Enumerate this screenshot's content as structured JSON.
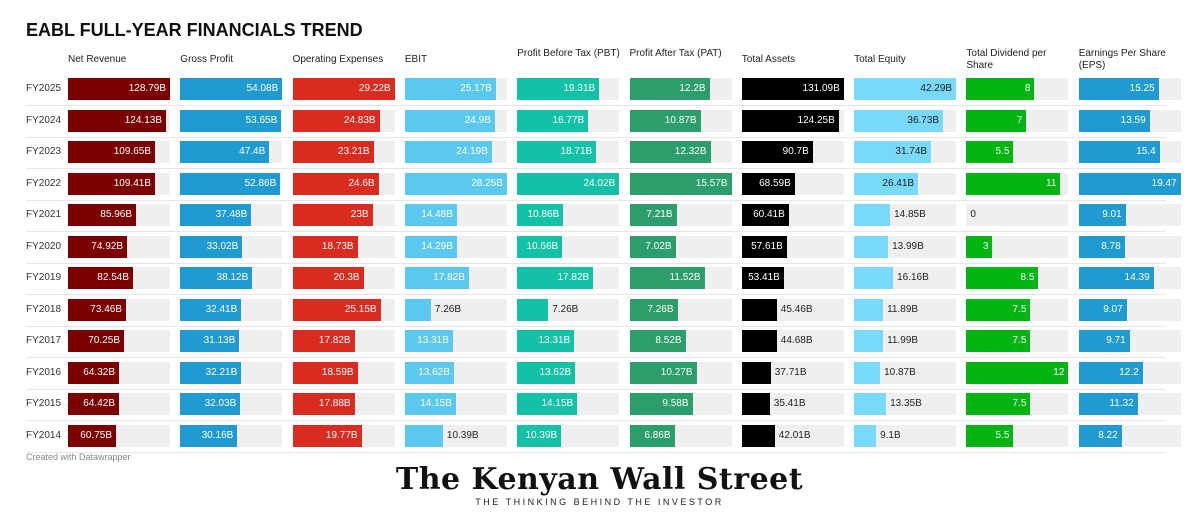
{
  "chart_data": {
    "type": "table",
    "title": "EABL FULL-YEAR FINANCIALS TREND",
    "credit": "Created with Datawrapper",
    "years": [
      "FY2025",
      "FY2024",
      "FY2023",
      "FY2022",
      "FY2021",
      "FY2020",
      "FY2019",
      "FY2018",
      "FY2017",
      "FY2016",
      "FY2015",
      "FY2014"
    ],
    "columns": [
      {
        "name": "Net Revenue",
        "color": "#7b0000",
        "unit": "B",
        "max": 128.79,
        "values": [
          128.79,
          124.13,
          109.65,
          109.41,
          85.96,
          74.92,
          82.54,
          73.46,
          70.25,
          64.32,
          64.42,
          60.75
        ]
      },
      {
        "name": "Gross Profit",
        "color": "#1f9bd1",
        "unit": "B",
        "max": 54.08,
        "values": [
          54.08,
          53.65,
          47.4,
          52.86,
          37.48,
          33.02,
          38.12,
          32.41,
          31.13,
          32.21,
          32.03,
          30.16
        ]
      },
      {
        "name": "Operating Expenses",
        "color": "#d92b1f",
        "unit": "B",
        "max": 29.22,
        "values": [
          29.22,
          24.83,
          23.21,
          24.6,
          23,
          18.73,
          20.3,
          25.15,
          17.82,
          18.59,
          17.88,
          19.77
        ]
      },
      {
        "name": "EBIT",
        "color": "#5bc8ee",
        "unit": "B",
        "max": 28.25,
        "values": [
          25.17,
          24.9,
          24.19,
          28.25,
          14.48,
          14.29,
          17.82,
          7.26,
          13.31,
          13.62,
          14.15,
          10.39
        ]
      },
      {
        "name": "Profit Before Tax (PBT)",
        "color": "#13c2a6",
        "unit": "B",
        "max": 24.02,
        "values": [
          19.31,
          16.77,
          18.71,
          24.02,
          10.86,
          10.66,
          17.82,
          7.26,
          13.31,
          13.62,
          14.15,
          10.39
        ]
      },
      {
        "name": "Profit After Tax (PAT)",
        "color": "#2b9e6c",
        "unit": "B",
        "max": 15.57,
        "values": [
          12.2,
          10.87,
          12.32,
          15.57,
          7.21,
          7.02,
          11.52,
          7.26,
          8.52,
          10.27,
          9.58,
          6.86
        ]
      },
      {
        "name": "Total Assets",
        "color": "#000000",
        "unit": "B",
        "max": 131.09,
        "values": [
          131.09,
          124.25,
          90.7,
          68.59,
          60.41,
          57.61,
          53.41,
          45.46,
          44.68,
          37.71,
          35.41,
          42.01
        ]
      },
      {
        "name": "Total Equity",
        "color": "#79d9fb",
        "unit": "B",
        "max": 42.29,
        "darktext": true,
        "values": [
          42.29,
          36.73,
          31.74,
          26.41,
          14.85,
          13.99,
          16.16,
          11.89,
          11.99,
          10.87,
          13.35,
          9.1
        ]
      },
      {
        "name": "Total Dividend per Share",
        "color": "#00b512",
        "unit": "",
        "max": 12,
        "values": [
          8,
          7,
          5.5,
          11,
          0,
          3,
          8.5,
          7.5,
          7.5,
          12,
          7.5,
          5.5
        ]
      },
      {
        "name": "Earnings Per Share (EPS)",
        "color": "#1f9bd1",
        "unit": "",
        "max": 19.47,
        "values": [
          15.25,
          13.59,
          15.4,
          19.47,
          9.01,
          8.78,
          14.39,
          9.07,
          9.71,
          12.2,
          11.32,
          8.22
        ]
      }
    ]
  },
  "logo": {
    "name": "The Kenyan Wall Street",
    "tagline": "THE THINKING BEHIND THE INVESTOR"
  }
}
